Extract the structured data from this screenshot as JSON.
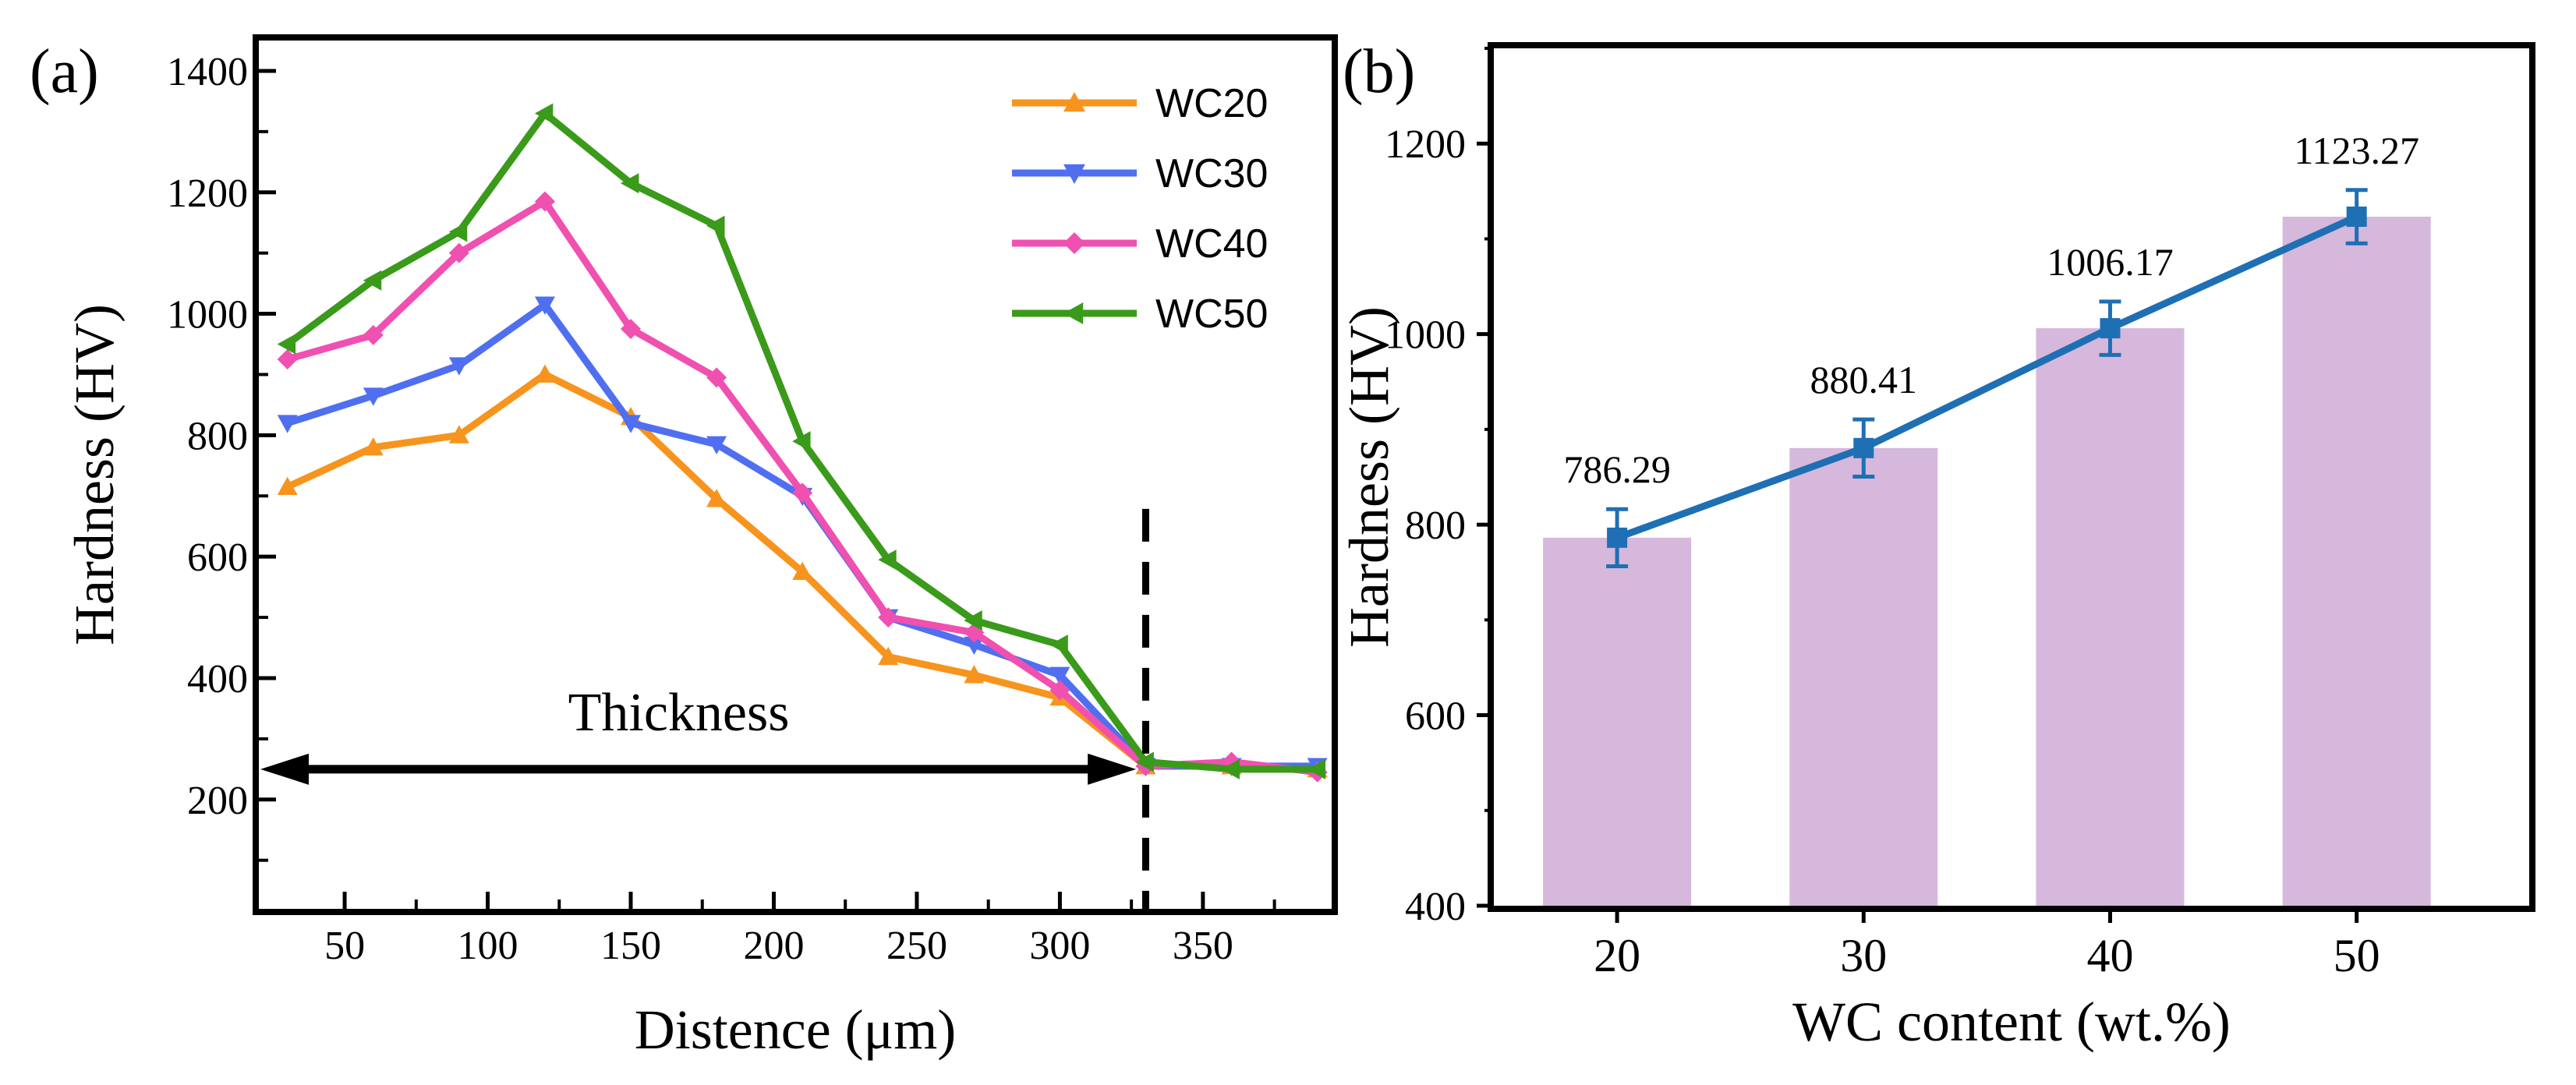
{
  "chart_data": [
    {
      "panel": "(a)",
      "type": "line",
      "xlabel": "Distence (μm)",
      "ylabel": "Hardness (HV)",
      "xlim": [
        20,
        395
      ],
      "ylim": [
        20,
        1450
      ],
      "xticks": [
        50,
        100,
        150,
        200,
        250,
        300,
        350
      ],
      "yticks": [
        200,
        400,
        600,
        800,
        1000,
        1200,
        1400
      ],
      "x": [
        30,
        60,
        90,
        120,
        150,
        180,
        210,
        240,
        270,
        300,
        330,
        360,
        390
      ],
      "series": [
        {
          "name": "WC20",
          "color": "#f7941d",
          "marker": "triangle-up",
          "values": [
            715,
            780,
            800,
            900,
            830,
            695,
            575,
            435,
            405,
            368,
            255,
            255,
            250
          ]
        },
        {
          "name": "WC30",
          "color": "#4f6ff0",
          "marker": "triangle-down",
          "values": [
            820,
            865,
            915,
            1015,
            820,
            785,
            700,
            500,
            455,
            405,
            255,
            255,
            255
          ]
        },
        {
          "name": "WC40",
          "color": "#f050b0",
          "marker": "diamond",
          "values": [
            925,
            965,
            1100,
            1185,
            975,
            895,
            705,
            500,
            475,
            380,
            255,
            262,
            245
          ]
        },
        {
          "name": "WC50",
          "color": "#3a9a1a",
          "marker": "triangle-left",
          "values": [
            950,
            1055,
            1135,
            1330,
            1215,
            1145,
            790,
            595,
            495,
            455,
            262,
            250,
            250
          ]
        }
      ],
      "annotations": {
        "thickness_label": "Thickness",
        "thickness_arrow_range": [
          20,
          325
        ],
        "thickness_arrow_y": 250,
        "boundary_x": 330
      },
      "legend_position": "top-right"
    },
    {
      "panel": "(b)",
      "type": "bar",
      "xlabel": "WC content (wt.%)",
      "ylabel": "Hardness (HV)",
      "xlim": [
        15,
        57
      ],
      "ylim": [
        400,
        1300
      ],
      "yticks": [
        400,
        600,
        800,
        1000,
        1200
      ],
      "categories": [
        "20",
        "30",
        "40",
        "50"
      ],
      "x": [
        20,
        30,
        40,
        50
      ],
      "values": [
        786.29,
        880.41,
        1006.17,
        1123.27
      ],
      "value_labels": [
        "786.29",
        "880.41",
        "1006.17",
        "1123.27"
      ],
      "errors": [
        30,
        30,
        28,
        28
      ],
      "bar_color": "#d6b8dc",
      "line_color": "#1f6fb4"
    }
  ]
}
